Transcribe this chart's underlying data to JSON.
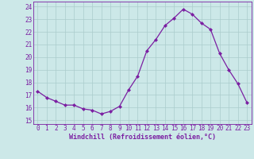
{
  "x": [
    0,
    1,
    2,
    3,
    4,
    5,
    6,
    7,
    8,
    9,
    10,
    11,
    12,
    13,
    14,
    15,
    16,
    17,
    18,
    19,
    20,
    21,
    22,
    23
  ],
  "y": [
    17.3,
    16.8,
    16.5,
    16.2,
    16.2,
    15.9,
    15.8,
    15.5,
    15.7,
    16.1,
    17.4,
    18.5,
    20.5,
    21.4,
    22.5,
    23.1,
    23.8,
    23.4,
    22.7,
    22.2,
    20.3,
    19.0,
    17.9,
    16.4
  ],
  "line_color": "#7b1fa2",
  "marker": "D",
  "marker_size": 2.0,
  "bg_color": "#cce8e8",
  "grid_color": "#aacccc",
  "ylabel_ticks": [
    15,
    16,
    17,
    18,
    19,
    20,
    21,
    22,
    23,
    24
  ],
  "ylim": [
    14.7,
    24.4
  ],
  "xlim": [
    -0.5,
    23.5
  ],
  "xlabel": "Windchill (Refroidissement éolien,°C)",
  "tick_color": "#7b1fa2",
  "spine_color": "#7b1fa2",
  "tick_fontsize": 5.5,
  "xlabel_fontsize": 6.0
}
